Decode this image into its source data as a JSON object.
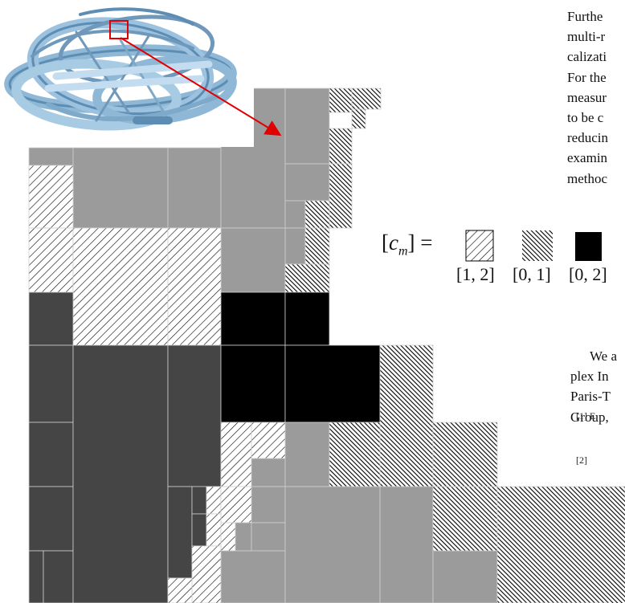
{
  "paragraph_fragments": [
    "Furthe",
    "multi-r",
    "calizati",
    "For the",
    "measur",
    "to be c",
    "reducin",
    "examin",
    "methoc"
  ],
  "legend": {
    "lhs": "[c_m] =",
    "lhs_symbol": "c",
    "lhs_sub": "m",
    "intervals": [
      "[1, 2]",
      "[0, 1]",
      "[0, 2]"
    ],
    "swatches": [
      "hatch-sparse",
      "hatch-dense",
      "solid-black"
    ]
  },
  "paragraph2_fragments": [
    "We a",
    "plex In",
    "Paris-T",
    "Group,"
  ],
  "reference_fragments": [
    "[1]  E.",
    "[2]"
  ],
  "colors": {
    "gray": "#9b9b9b",
    "dark_gray": "#454545",
    "black": "#000000",
    "arrow": "#e00000",
    "knot": "#7fa9c9"
  }
}
